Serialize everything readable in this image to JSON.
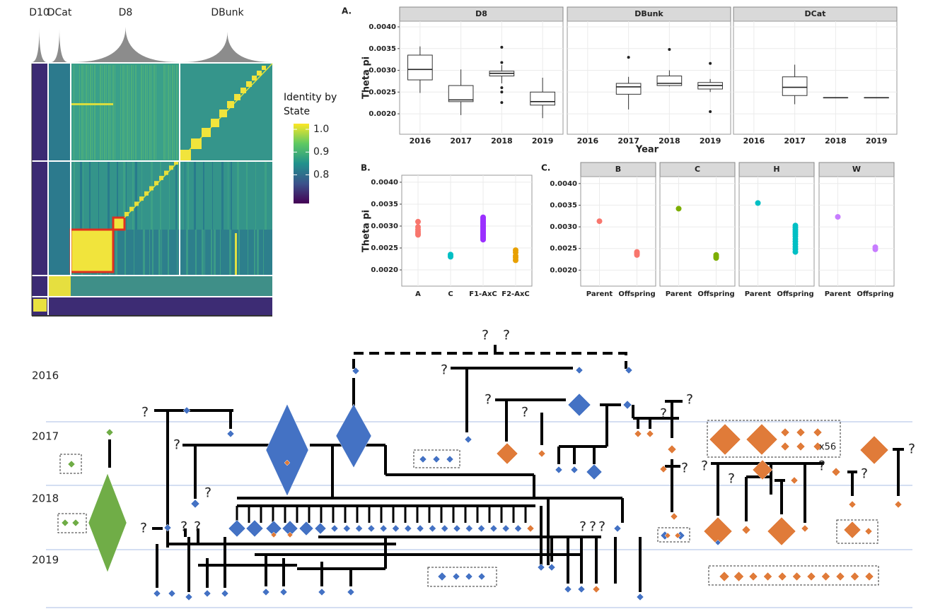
{
  "chart_data": [
    {
      "type": "heatmap",
      "groups": [
        "D10",
        "DCat",
        "D8",
        "DBunk"
      ],
      "colorbar": {
        "title": "Identity by State",
        "lim": [
          0.674,
          1.025
        ],
        "ticks": [
          {
            "value": 1.0,
            "label": "1.0"
          },
          0.9,
          0.8
        ]
      }
    },
    {
      "type": "box",
      "panel": "A.",
      "ylabel": "Theta pi",
      "xlabel": "Year",
      "ylim": [
        0.00153,
        0.00413
      ],
      "yticks": [
        {
          "value": 0.002,
          "label": "0.0020"
        },
        0.0025,
        {
          "value": 0.003,
          "label": "0.0030"
        },
        0.0035,
        {
          "value": 0.004,
          "label": "0.0040"
        }
      ],
      "facets": [
        {
          "title": "D8",
          "categories": [
            "2016",
            "2017",
            "2018",
            "2019"
          ],
          "boxes": [
            {
              "min": 0.00248,
              "q1": 0.00278,
              "median": 0.00302,
              "q3": 0.00335,
              "max": 0.00355,
              "outliers": []
            },
            {
              "min": 0.00197,
              "q1": 0.00228,
              "median": 0.00232,
              "q3": 0.00265,
              "max": 0.00302,
              "outliers": []
            },
            {
              "min": 0.0027,
              "q1": 0.00287,
              "median": 0.00293,
              "q3": 0.00298,
              "max": 0.00312,
              "outliers": [
                0.00353,
                0.00318,
                0.0026,
                0.0025,
                0.00226
              ]
            },
            {
              "min": 0.0019,
              "q1": 0.0022,
              "median": 0.00228,
              "q3": 0.0025,
              "max": 0.00283,
              "outliers": []
            }
          ]
        },
        {
          "title": "DBunk",
          "categories": [
            "2016",
            "2017",
            "2018",
            "2019"
          ],
          "boxes": [
            null,
            {
              "min": 0.0021,
              "q1": 0.00245,
              "median": 0.00262,
              "q3": 0.0027,
              "max": 0.00285,
              "outliers": [
                0.0033
              ]
            },
            {
              "min": 0.00263,
              "q1": 0.00265,
              "median": 0.0027,
              "q3": 0.00287,
              "max": 0.003,
              "outliers": [
                0.00348
              ]
            },
            {
              "min": 0.0025,
              "q1": 0.00257,
              "median": 0.00265,
              "q3": 0.00272,
              "max": 0.0028,
              "outliers": [
                0.00316,
                0.00205
              ]
            }
          ]
        },
        {
          "title": "DCat",
          "categories": [
            "2016",
            "2017",
            "2018",
            "2019"
          ],
          "boxes": [
            null,
            {
              "min": 0.00222,
              "q1": 0.00242,
              "median": 0.00261,
              "q3": 0.00285,
              "max": 0.00313,
              "outliers": []
            },
            {
              "min": 0.00237,
              "q1": 0.00237,
              "median": 0.00237,
              "q3": 0.00237,
              "max": 0.00237,
              "outliers": []
            },
            {
              "min": 0.00237,
              "q1": 0.00237,
              "median": 0.00237,
              "q3": 0.00237,
              "max": 0.00237,
              "outliers": []
            }
          ]
        }
      ]
    },
    {
      "type": "strip",
      "panel": "B.",
      "ylabel": "Theta pi",
      "ylim": [
        0.00163,
        0.00416
      ],
      "yticks": [
        {
          "value": 0.002,
          "label": "0.0020"
        },
        0.0025,
        {
          "value": 0.003,
          "label": "0.0030"
        },
        0.0035,
        {
          "value": 0.004,
          "label": "0.0040"
        }
      ],
      "categories": [
        "A",
        "C",
        "F1-AxC",
        "F2-AxC"
      ],
      "colors": [
        "#f8766d",
        "#00bfc4",
        "#9b30ff",
        "#e8a000"
      ],
      "values": [
        [
          0.0031,
          0.00298,
          0.00292,
          0.00287,
          0.00283,
          0.0028
        ],
        [
          0.00235,
          0.00232,
          0.0023
        ],
        [
          0.0032,
          0.00317,
          0.00314,
          0.00311,
          0.00308,
          0.00305,
          0.00302,
          0.00299,
          0.00296,
          0.00293,
          0.0029,
          0.00287,
          0.00284,
          0.00281,
          0.00278,
          0.00275,
          0.00272,
          0.00269
        ],
        [
          0.00245,
          0.0024,
          0.00232,
          0.00228,
          0.00222
        ]
      ]
    },
    {
      "type": "strip",
      "panel": "C.",
      "ylim": [
        0.00163,
        0.00416
      ],
      "yticks": [
        {
          "value": 0.002,
          "label": "0.0020"
        },
        0.0025,
        {
          "value": 0.003,
          "label": "0.0030"
        },
        0.0035,
        {
          "value": 0.004,
          "label": "0.0040"
        }
      ],
      "facets": [
        {
          "title": "B",
          "color": "#f8766d",
          "categories": [
            "Parent",
            "Offspring"
          ],
          "values": [
            [
              0.00313
            ],
            [
              0.00242,
              0.0024,
              0.00238,
              0.00235
            ]
          ]
        },
        {
          "title": "C",
          "color": "#7cae00",
          "categories": [
            "Parent",
            "Offspring"
          ],
          "values": [
            [
              0.00342
            ],
            [
              0.00235,
              0.00232,
              0.0023,
              0.00228
            ]
          ]
        },
        {
          "title": "H",
          "color": "#00bfc4",
          "categories": [
            "Parent",
            "Offspring"
          ],
          "values": [
            [
              0.00355
            ],
            [
              0.00303,
              0.00298,
              0.00293,
              0.00288,
              0.00283,
              0.00278,
              0.00272,
              0.00266,
              0.0026,
              0.00254,
              0.00248,
              0.00242
            ]
          ]
        },
        {
          "title": "W",
          "color": "#c77cff",
          "categories": [
            "Parent",
            "Offspring"
          ],
          "values": [
            [
              0.00323
            ],
            [
              0.00253,
              0.00248
            ]
          ]
        }
      ]
    }
  ],
  "pedigree": {
    "years": [
      "2016",
      "2017",
      "2018",
      "2019"
    ],
    "annotations": [
      "?",
      "?",
      "?",
      "?",
      "?",
      "?",
      "?",
      "?",
      "?",
      "?",
      "?",
      "?",
      "?",
      "?",
      "?",
      "?",
      "?",
      "?",
      "?",
      "?",
      "?",
      "?",
      "x56"
    ]
  }
}
